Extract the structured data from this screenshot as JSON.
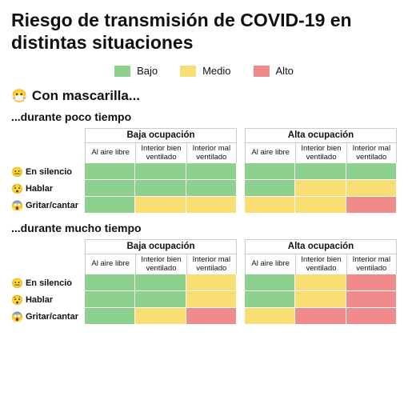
{
  "title": "Riesgo de transmisión de COVID-19 en distintas situaciones",
  "legend": {
    "low": {
      "label": "Bajo",
      "color": "#8ed18e"
    },
    "medium": {
      "label": "Medio",
      "color": "#f7dd72"
    },
    "high": {
      "label": "Alto",
      "color": "#f08b8b"
    }
  },
  "section": {
    "emoji": "😷",
    "title": "Con mascarilla..."
  },
  "occupancy": {
    "low": "Baja ocupación",
    "high": "Alta ocupación"
  },
  "columns": [
    "Al aire libre",
    "Interior bien ventilado",
    "Interior mal ventilado"
  ],
  "rows": [
    {
      "emoji": "😐",
      "label": "En silencio"
    },
    {
      "emoji": "😯",
      "label": "Hablar"
    },
    {
      "emoji": "😱",
      "label": "Gritar/cantar"
    }
  ],
  "blocks": [
    {
      "subtitle": "...durante poco tiempo",
      "low_occ": [
        [
          "low",
          "low",
          "low"
        ],
        [
          "low",
          "low",
          "low"
        ],
        [
          "low",
          "medium",
          "medium"
        ]
      ],
      "high_occ": [
        [
          "low",
          "low",
          "low"
        ],
        [
          "low",
          "medium",
          "medium"
        ],
        [
          "medium",
          "medium",
          "high"
        ]
      ]
    },
    {
      "subtitle": "...durante mucho tiempo",
      "low_occ": [
        [
          "low",
          "low",
          "medium"
        ],
        [
          "low",
          "low",
          "medium"
        ],
        [
          "low",
          "medium",
          "high"
        ]
      ],
      "high_occ": [
        [
          "low",
          "medium",
          "high"
        ],
        [
          "low",
          "medium",
          "high"
        ],
        [
          "medium",
          "high",
          "high"
        ]
      ]
    }
  ],
  "style": {
    "background": "#ffffff",
    "title_fontsize": 23,
    "border_color": "#cccccc"
  }
}
